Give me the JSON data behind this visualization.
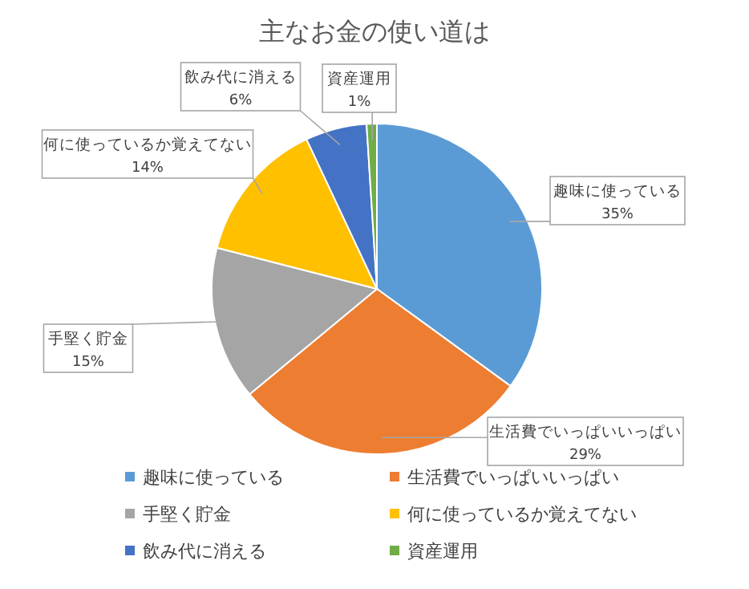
{
  "chart_data": {
    "type": "pie",
    "title": "主なお金の使い道は",
    "categories": [
      "趣味に使っている",
      "生活費でいっぱいいっぱい",
      "手堅く貯金",
      "何に使っているか覚えてない",
      "飲み代に消える",
      "資産運用"
    ],
    "values": [
      35,
      29,
      15,
      14,
      6,
      1
    ],
    "colors": [
      "#5b9bd5",
      "#ed7d31",
      "#a5a5a5",
      "#ffc000",
      "#4472c4",
      "#70ad47"
    ],
    "value_labels": [
      "35%",
      "29%",
      "15%",
      "14%",
      "6%",
      "1%"
    ],
    "legend": "bottom"
  }
}
